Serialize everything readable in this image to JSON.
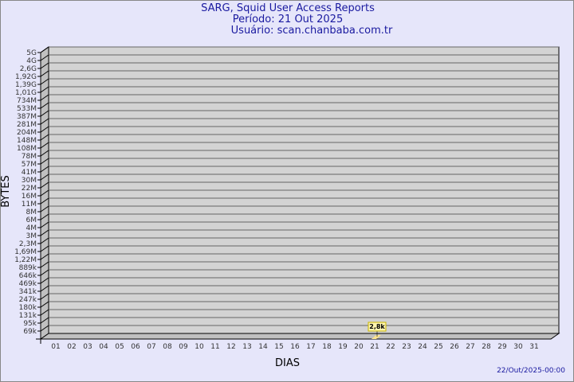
{
  "header": {
    "title": "SARG, Squid User Access Reports",
    "period": "Período: 21 Out 2025",
    "user": "Usuário: scan.chanbaba.com.tr"
  },
  "footer": {
    "date": "22/Out/2025-00:00"
  },
  "chart_data": {
    "type": "bar",
    "xlabel": "DIAS",
    "ylabel": "BYTES",
    "y_ticks": [
      "5G",
      "4G",
      "2,6G",
      "1,92G",
      "1,39G",
      "1,01G",
      "734M",
      "533M",
      "387M",
      "281M",
      "204M",
      "148M",
      "108M",
      "78M",
      "57M",
      "41M",
      "30M",
      "22M",
      "16M",
      "11M",
      "8M",
      "6M",
      "4M",
      "3M",
      "2,3M",
      "1,69M",
      "1,22M",
      "889k",
      "646k",
      "469k",
      "341k",
      "247k",
      "180k",
      "131k",
      "95k",
      "69k"
    ],
    "categories": [
      "01",
      "02",
      "03",
      "04",
      "05",
      "06",
      "07",
      "08",
      "09",
      "10",
      "11",
      "12",
      "13",
      "14",
      "15",
      "16",
      "17",
      "18",
      "19",
      "20",
      "21",
      "22",
      "23",
      "24",
      "25",
      "26",
      "27",
      "28",
      "29",
      "30",
      "31"
    ],
    "values": [
      0,
      0,
      0,
      0,
      0,
      0,
      0,
      0,
      0,
      0,
      0,
      0,
      0,
      0,
      0,
      0,
      0,
      0,
      0,
      0,
      2800,
      0,
      0,
      0,
      0,
      0,
      0,
      0,
      0,
      0,
      0
    ],
    "data_labels": {
      "21": "2,8k"
    },
    "grid": true,
    "colors": {
      "plot": "#d3d3d3",
      "bar": "#fde48c",
      "title": "#1a1aa0",
      "background": "#e6e6fa"
    }
  }
}
